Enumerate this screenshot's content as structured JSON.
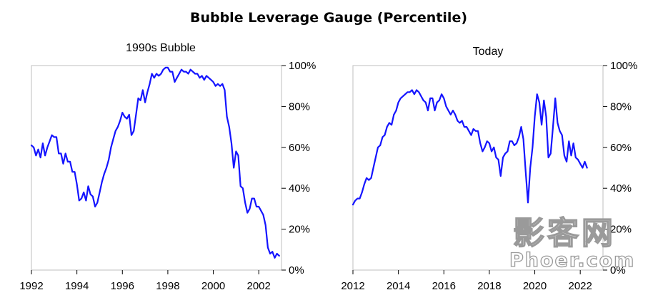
{
  "title": "Bubble Leverage Gauge (Percentile)",
  "watermark": {
    "cn": "影客网",
    "en": "Phoer.com"
  },
  "chart_data": [
    {
      "type": "line",
      "title": "1990s Bubble",
      "xlim": [
        1992,
        2003
      ],
      "ylim": [
        0,
        100
      ],
      "x_ticks": [
        1992,
        1994,
        1996,
        1998,
        2000,
        2002
      ],
      "y_ticks": [
        0,
        20,
        40,
        60,
        80,
        100
      ],
      "y_tick_labels": [
        "0%",
        "20%",
        "40%",
        "60%",
        "80%",
        "100%"
      ],
      "y_axis_side": "right",
      "series": [
        {
          "color": "#1414ff",
          "x": [
            1992.0,
            1992.1,
            1992.2,
            1992.3,
            1992.4,
            1992.5,
            1992.6,
            1992.7,
            1992.8,
            1992.9,
            1993.0,
            1993.1,
            1993.2,
            1993.3,
            1993.4,
            1993.5,
            1993.6,
            1993.7,
            1993.8,
            1993.9,
            1994.0,
            1994.1,
            1994.2,
            1994.3,
            1994.4,
            1994.5,
            1994.6,
            1994.7,
            1994.8,
            1994.9,
            1995.0,
            1995.1,
            1995.2,
            1995.3,
            1995.4,
            1995.5,
            1995.6,
            1995.7,
            1995.8,
            1995.9,
            1996.0,
            1996.1,
            1996.2,
            1996.3,
            1996.4,
            1996.5,
            1996.6,
            1996.7,
            1996.8,
            1996.9,
            1997.0,
            1997.1,
            1997.2,
            1997.3,
            1997.4,
            1997.5,
            1997.6,
            1997.7,
            1997.8,
            1997.9,
            1998.0,
            1998.1,
            1998.2,
            1998.3,
            1998.4,
            1998.5,
            1998.6,
            1998.7,
            1998.8,
            1998.9,
            1999.0,
            1999.1,
            1999.2,
            1999.3,
            1999.4,
            1999.5,
            1999.6,
            1999.7,
            1999.8,
            1999.9,
            2000.0,
            2000.1,
            2000.2,
            2000.3,
            2000.4,
            2000.5,
            2000.6,
            2000.7,
            2000.8,
            2000.9,
            2001.0,
            2001.1,
            2001.2,
            2001.3,
            2001.4,
            2001.5,
            2001.6,
            2001.7,
            2001.8,
            2001.9,
            2002.0,
            2002.1,
            2002.2,
            2002.3,
            2002.4,
            2002.5,
            2002.6,
            2002.7,
            2002.8,
            2002.9
          ],
          "y": [
            61,
            60,
            56,
            59,
            55,
            62,
            56,
            60,
            63,
            66,
            65,
            65,
            57,
            57,
            52,
            57,
            53,
            53,
            48,
            48,
            42,
            34,
            35,
            38,
            34,
            41,
            37,
            36,
            31,
            33,
            38,
            43,
            47,
            50,
            54,
            60,
            64,
            68,
            70,
            73,
            77,
            75,
            74,
            76,
            66,
            68,
            76,
            84,
            83,
            88,
            82,
            87,
            91,
            96,
            94,
            96,
            95,
            96,
            98,
            99,
            99,
            97,
            97,
            92,
            94,
            96,
            98,
            97,
            97,
            96,
            98,
            97,
            96,
            96,
            94,
            95,
            93,
            95,
            94,
            93,
            92,
            90,
            91,
            90,
            91,
            88,
            75,
            70,
            62,
            50,
            58,
            56,
            41,
            40,
            33,
            28,
            30,
            35,
            35,
            31,
            31,
            29,
            27,
            22,
            11,
            8,
            9,
            6,
            8,
            7
          ]
        }
      ]
    },
    {
      "type": "line",
      "title": "Today",
      "xlim": [
        2012,
        2023
      ],
      "ylim": [
        0,
        100
      ],
      "x_ticks": [
        2012,
        2014,
        2016,
        2018,
        2020,
        2022
      ],
      "y_ticks": [
        0,
        20,
        40,
        60,
        80,
        100
      ],
      "y_tick_labels": [
        "0%",
        "20%",
        "40%",
        "60%",
        "80%",
        "100%"
      ],
      "y_axis_side": "right",
      "series": [
        {
          "color": "#1414ff",
          "x": [
            2012.0,
            2012.1,
            2012.2,
            2012.3,
            2012.4,
            2012.5,
            2012.6,
            2012.7,
            2012.8,
            2012.9,
            2013.0,
            2013.1,
            2013.2,
            2013.3,
            2013.4,
            2013.5,
            2013.6,
            2013.7,
            2013.8,
            2013.9,
            2014.0,
            2014.1,
            2014.2,
            2014.3,
            2014.4,
            2014.5,
            2014.6,
            2014.7,
            2014.8,
            2014.9,
            2015.0,
            2015.1,
            2015.2,
            2015.3,
            2015.4,
            2015.5,
            2015.6,
            2015.7,
            2015.8,
            2015.9,
            2016.0,
            2016.1,
            2016.2,
            2016.3,
            2016.4,
            2016.5,
            2016.6,
            2016.7,
            2016.8,
            2016.9,
            2017.0,
            2017.1,
            2017.2,
            2017.3,
            2017.4,
            2017.5,
            2017.6,
            2017.7,
            2017.8,
            2017.9,
            2018.0,
            2018.1,
            2018.2,
            2018.3,
            2018.4,
            2018.5,
            2018.6,
            2018.7,
            2018.8,
            2018.9,
            2019.0,
            2019.1,
            2019.2,
            2019.3,
            2019.4,
            2019.5,
            2019.6,
            2019.7,
            2019.8,
            2019.9,
            2020.0,
            2020.1,
            2020.2,
            2020.3,
            2020.4,
            2020.5,
            2020.6,
            2020.7,
            2020.8,
            2020.9,
            2021.0,
            2021.1,
            2021.2,
            2021.3,
            2021.4,
            2021.5,
            2021.6,
            2021.7,
            2021.8,
            2021.9,
            2022.0,
            2022.1,
            2022.2,
            2022.3
          ],
          "y": [
            32,
            34,
            35,
            35,
            38,
            42,
            45,
            44,
            45,
            50,
            55,
            60,
            61,
            65,
            66,
            70,
            72,
            71,
            76,
            78,
            82,
            84,
            85,
            86,
            87,
            87,
            88,
            86,
            88,
            87,
            85,
            83,
            82,
            78,
            84,
            84,
            78,
            82,
            83,
            86,
            84,
            80,
            78,
            76,
            78,
            76,
            73,
            72,
            73,
            70,
            70,
            68,
            66,
            69,
            68,
            68,
            62,
            58,
            60,
            63,
            62,
            58,
            60,
            55,
            54,
            46,
            55,
            57,
            58,
            63,
            63,
            61,
            62,
            65,
            70,
            64,
            48,
            33,
            50,
            60,
            75,
            86,
            82,
            71,
            83,
            75,
            55,
            57,
            70,
            84,
            72,
            68,
            66,
            56,
            53,
            63,
            56,
            62,
            55,
            54,
            52,
            50,
            53,
            50
          ]
        }
      ]
    }
  ]
}
